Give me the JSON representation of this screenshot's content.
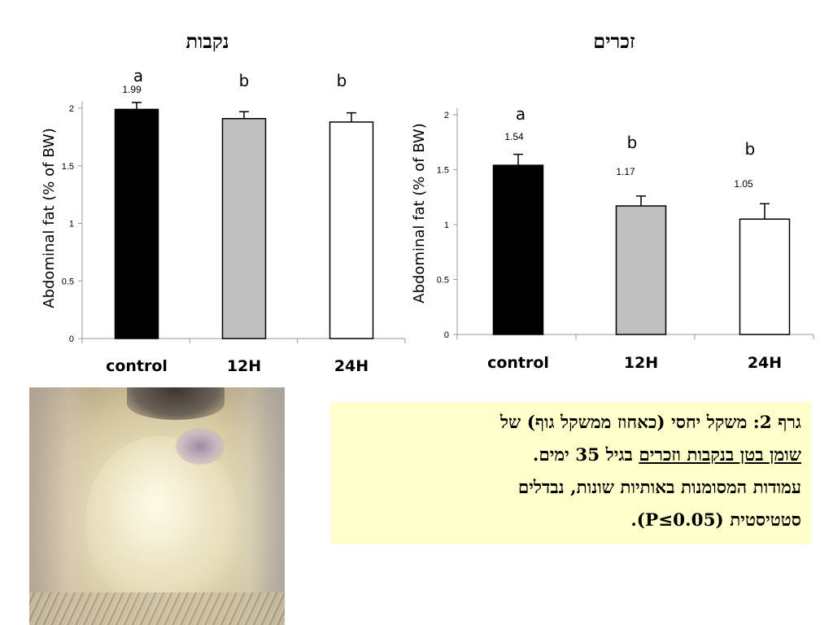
{
  "chart_data": [
    {
      "type": "bar",
      "title": "נקבות",
      "ylabel": "Abdominal fat (% of BW)",
      "categories": [
        "control",
        "12H",
        "24H"
      ],
      "values": [
        1.99,
        1.91,
        1.88
      ],
      "errors": [
        0.06,
        0.06,
        0.08
      ],
      "value_labels": [
        "1.99",
        "",
        ""
      ],
      "significance_letters": [
        "a",
        "b",
        "b"
      ],
      "bar_colors": [
        "#000000",
        "#c0c0c0",
        "#ffffff"
      ],
      "ylim": [
        0,
        2
      ],
      "yticks": [
        "0",
        "0.5",
        "1",
        "1.5",
        "2"
      ],
      "ytick_values": [
        0,
        0.5,
        1,
        1.5,
        2
      ],
      "grid": false
    },
    {
      "type": "bar",
      "title": "זכרים",
      "ylabel": "Abdominal fat (% of BW)",
      "categories": [
        "control",
        "12H",
        "24H"
      ],
      "values": [
        1.54,
        1.17,
        1.05
      ],
      "errors": [
        0.1,
        0.09,
        0.14
      ],
      "value_labels": [
        "1.54",
        "1.17",
        "1.05"
      ],
      "significance_letters": [
        "a",
        "b",
        "b"
      ],
      "bar_colors": [
        "#000000",
        "#c0c0c0",
        "#ffffff"
      ],
      "ylim": [
        0,
        2
      ],
      "yticks": [
        "0",
        "0.5",
        "1",
        "1.5",
        "2"
      ],
      "ytick_values": [
        0,
        0.5,
        1,
        1.5,
        2
      ],
      "grid": false
    }
  ],
  "caption": {
    "line1": "גרף 2: משקל יחסי (כאחוז ממשקל גוף) של",
    "line2_underlined": "שומן בטן בנקבות וזכרים",
    "line2_rest": " בגיל 35 ימים.",
    "line3": "עמודות המסומנות באותיות שונות, נבדלים",
    "line4": "סטטיסטית (P≤0.05).",
    "background": "#ffffcc"
  }
}
